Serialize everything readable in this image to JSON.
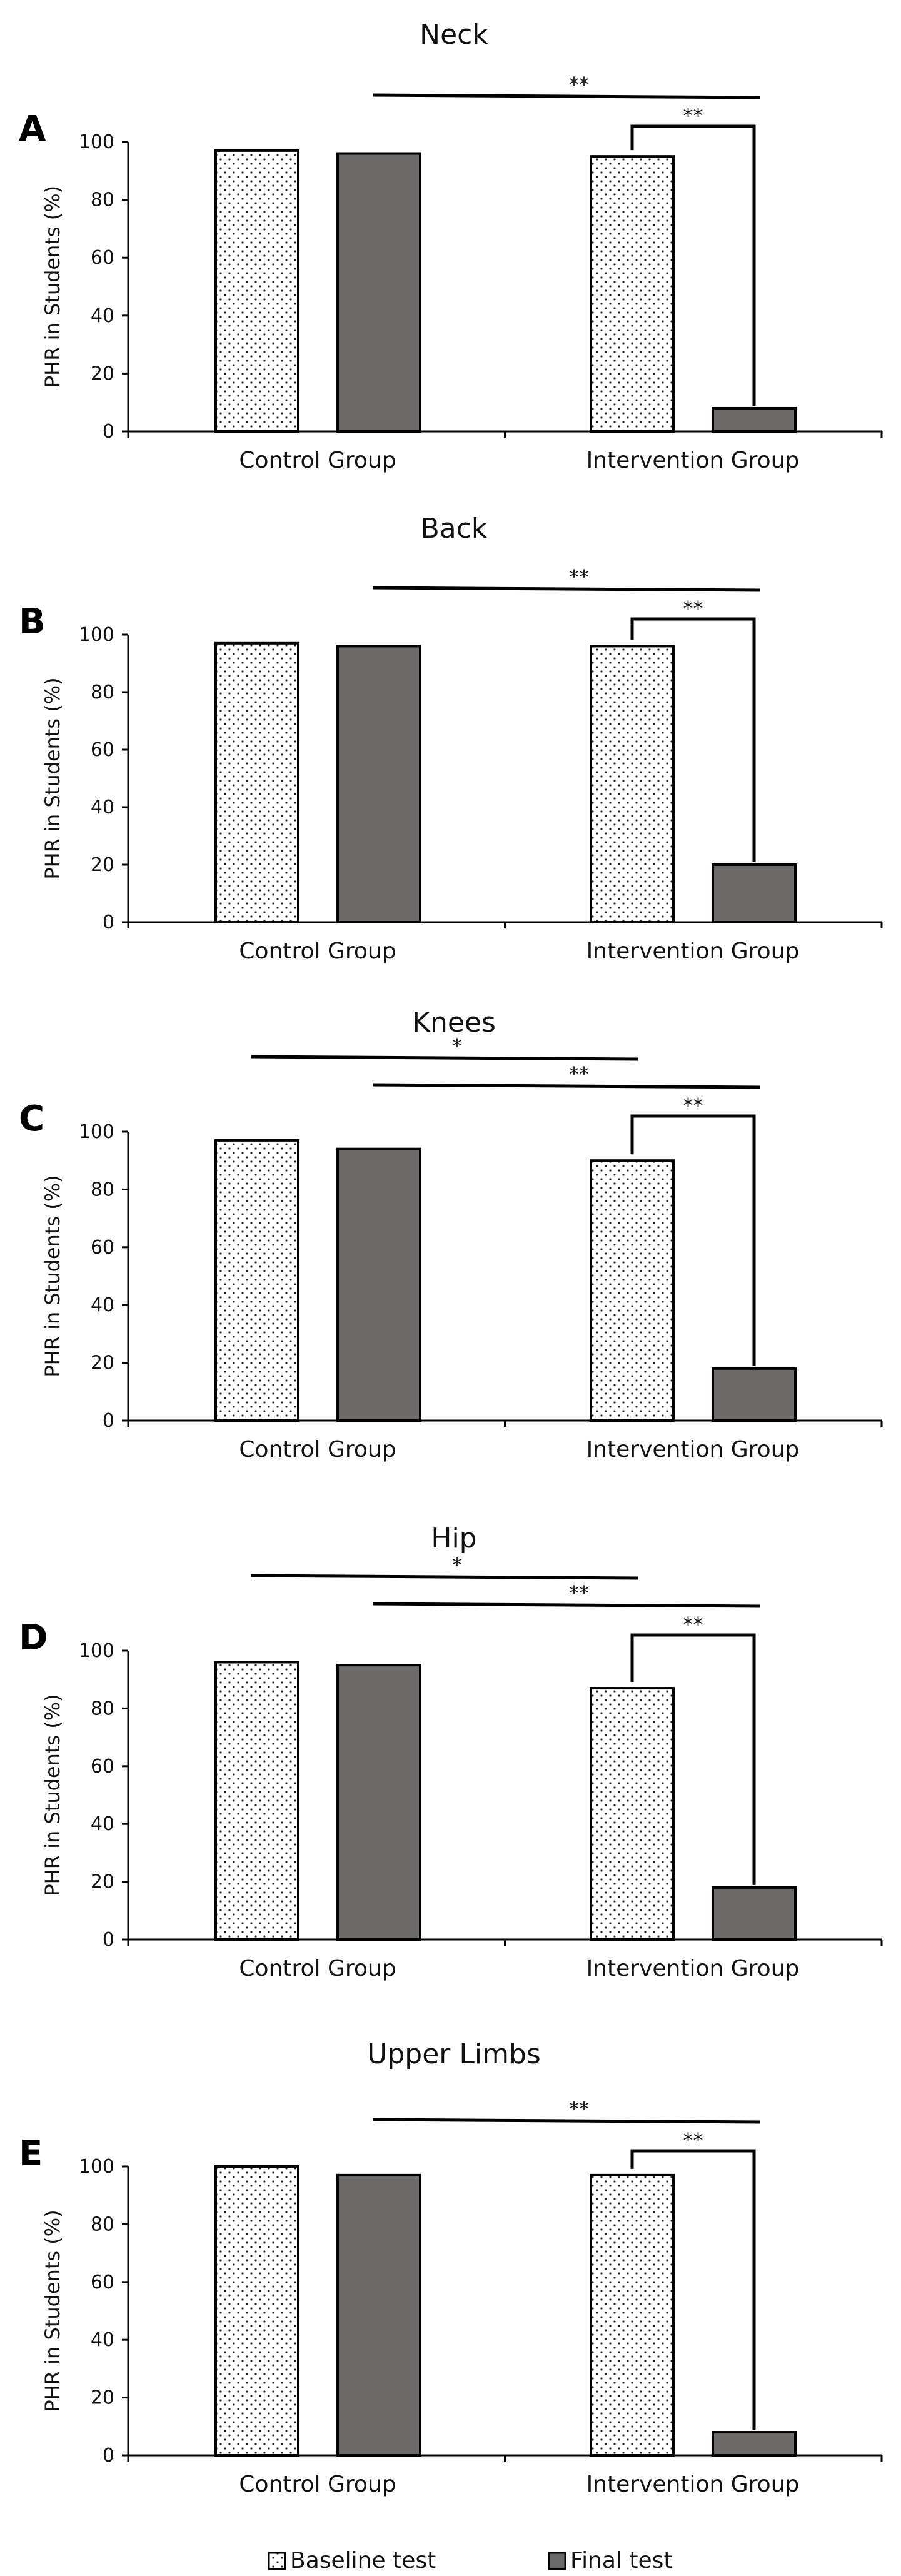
{
  "chart_data": [
    {
      "type": "bar",
      "panel": "A",
      "title": "Neck",
      "categories": [
        "Control Group",
        "Intervention  Group"
      ],
      "series": [
        {
          "name": "Baseline test",
          "values": [
            97,
            95
          ]
        },
        {
          "name": "Final test",
          "values": [
            96,
            8
          ]
        }
      ],
      "ylabel": "PHR in Students (%)",
      "ylim": [
        0,
        100
      ],
      "yticks": [
        "0",
        "20",
        "40",
        "60",
        "80",
        "100"
      ],
      "significance": [
        {
          "from": "Control Group|Final test",
          "to": "Intervention  Group|Final test",
          "label": "**"
        },
        {
          "from": "Intervention  Group|Baseline test",
          "to": "Intervention  Group|Final test",
          "label": "**"
        }
      ]
    },
    {
      "type": "bar",
      "panel": "B",
      "title": "Back",
      "categories": [
        "Control Group",
        "Intervention  Group"
      ],
      "series": [
        {
          "name": "Baseline test",
          "values": [
            97,
            96
          ]
        },
        {
          "name": "Final test",
          "values": [
            96,
            20
          ]
        }
      ],
      "ylabel": "PHR in Students (%)",
      "ylim": [
        0,
        100
      ],
      "yticks": [
        "0",
        "20",
        "40",
        "60",
        "80",
        "100"
      ],
      "significance": [
        {
          "from": "Control Group|Final test",
          "to": "Intervention  Group|Final test",
          "label": "**"
        },
        {
          "from": "Intervention  Group|Baseline test",
          "to": "Intervention  Group|Final test",
          "label": "**"
        }
      ]
    },
    {
      "type": "bar",
      "panel": "C",
      "title": "Knees",
      "categories": [
        "Control Group",
        "Intervention  Group"
      ],
      "series": [
        {
          "name": "Baseline test",
          "values": [
            97,
            90
          ]
        },
        {
          "name": "Final test",
          "values": [
            94,
            18
          ]
        }
      ],
      "ylabel": "PHR in Students (%)",
      "ylim": [
        0,
        100
      ],
      "yticks": [
        "0",
        "20",
        "40",
        "60",
        "80",
        "100"
      ],
      "significance": [
        {
          "from": "Control Group|Baseline test",
          "to": "Intervention  Group|Baseline test",
          "label": "*"
        },
        {
          "from": "Control Group|Final test",
          "to": "Intervention  Group|Final test",
          "label": "**"
        },
        {
          "from": "Intervention  Group|Baseline test",
          "to": "Intervention  Group|Final test",
          "label": "**"
        }
      ]
    },
    {
      "type": "bar",
      "panel": "D",
      "title": "Hip",
      "categories": [
        "Control Group",
        "Intervention  Group"
      ],
      "series": [
        {
          "name": "Baseline test",
          "values": [
            96,
            87
          ]
        },
        {
          "name": "Final test",
          "values": [
            95,
            18
          ]
        }
      ],
      "ylabel": "PHR in Students (%)",
      "ylim": [
        0,
        100
      ],
      "yticks": [
        "0",
        "20",
        "40",
        "60",
        "80",
        "100"
      ],
      "significance": [
        {
          "from": "Control Group|Baseline test",
          "to": "Intervention  Group|Baseline test",
          "label": "*"
        },
        {
          "from": "Control Group|Final test",
          "to": "Intervention  Group|Final test",
          "label": "**"
        },
        {
          "from": "Intervention  Group|Baseline test",
          "to": "Intervention  Group|Final test",
          "label": "**"
        }
      ]
    },
    {
      "type": "bar",
      "panel": "E",
      "title": "Upper Limbs",
      "categories": [
        "Control Group",
        "Intervention  Group"
      ],
      "series": [
        {
          "name": "Baseline test",
          "values": [
            100,
            97
          ]
        },
        {
          "name": "Final test",
          "values": [
            97,
            8
          ]
        }
      ],
      "ylabel": "PHR in Students (%)",
      "ylim": [
        0,
        100
      ],
      "yticks": [
        "0",
        "20",
        "40",
        "60",
        "80",
        "100"
      ],
      "significance": [
        {
          "from": "Control Group|Final test",
          "to": "Intervention  Group|Final test",
          "label": "**"
        },
        {
          "from": "Intervention  Group|Baseline test",
          "to": "Intervention  Group|Final test",
          "label": "**"
        }
      ]
    }
  ],
  "legend": {
    "position": "bottom",
    "items": [
      {
        "label": "Baseline test",
        "style": "dotted"
      },
      {
        "label": "Final test",
        "color": "#6f6a6a"
      }
    ]
  },
  "colors": {
    "baseline_fill": "#ffffff",
    "baseline_dots": "#222222",
    "final_fill": "#6f6a6a",
    "bar_stroke": "#000000"
  }
}
